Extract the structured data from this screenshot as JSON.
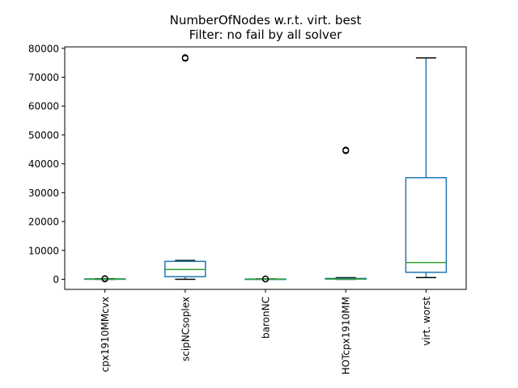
{
  "chart_data": {
    "type": "box",
    "title": "NumberOfNodes w.r.t. virt. best",
    "subtitle": "Filter: no fail by all solver",
    "xlabel": "",
    "ylabel": "",
    "ylim": [
      -3500,
      80500
    ],
    "yticks": [
      0,
      10000,
      20000,
      30000,
      40000,
      50000,
      60000,
      70000,
      80000
    ],
    "ytick_labels": [
      "0",
      "10000",
      "20000",
      "30000",
      "40000",
      "50000",
      "60000",
      "70000",
      "80000"
    ],
    "grid": false,
    "legend": "none",
    "categories": [
      "cpx1910MMcvx",
      "scipNCsoplex",
      "baronNC",
      "HOTcpx1910MM",
      "virt. worst"
    ],
    "boxes": [
      {
        "whislo": 0,
        "q1": 30,
        "med": 80,
        "q3": 150,
        "whishi": 200,
        "fliers": [
          100,
          250
        ]
      },
      {
        "whislo": 0,
        "q1": 900,
        "med": 3400,
        "q3": 6200,
        "whishi": 6500,
        "fliers": [
          76500,
          76800
        ]
      },
      {
        "whislo": 0,
        "q1": 10,
        "med": 40,
        "q3": 90,
        "whishi": 150,
        "fliers": [
          50,
          150
        ]
      },
      {
        "whislo": 0,
        "q1": 50,
        "med": 120,
        "q3": 300,
        "whishi": 550,
        "fliers": [
          44500,
          44800
        ]
      },
      {
        "whislo": 600,
        "q1": 2400,
        "med": 5800,
        "q3": 35200,
        "whishi": 76700,
        "fliers": []
      }
    ],
    "colors": {
      "box": "#1f77b4",
      "median": "#2ca02c",
      "whisker": "#1f77b4",
      "cap": "#000000",
      "flier": "#000000"
    }
  }
}
